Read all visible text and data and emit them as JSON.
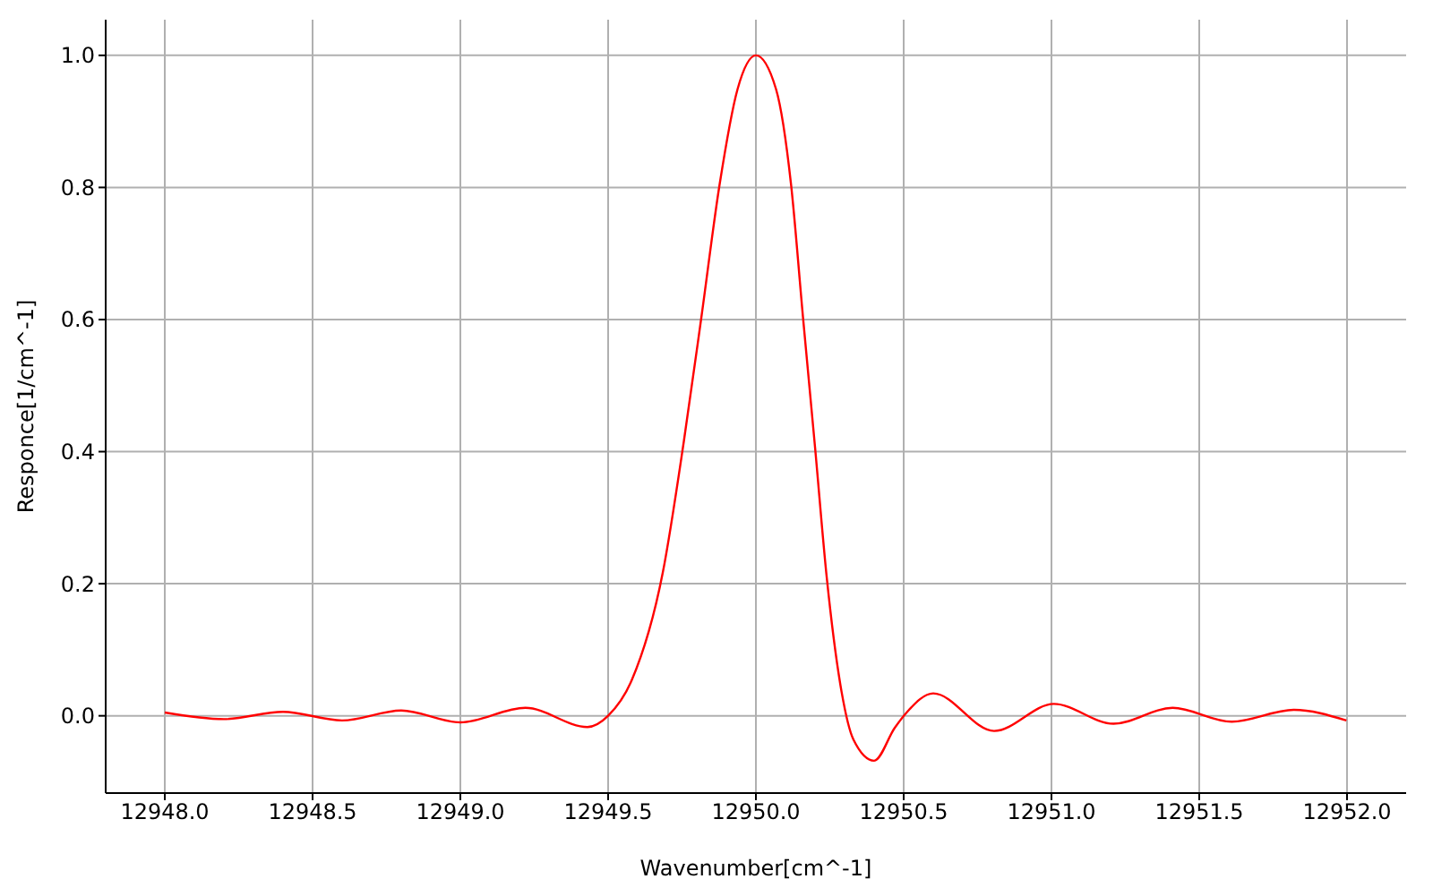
{
  "chart_data": {
    "type": "line",
    "xlabel": "Wavenumber[cm^-1]",
    "ylabel": "Responce[1/cm^-1]",
    "xlim": [
      12947.8,
      12952.2
    ],
    "ylim": [
      -0.117,
      1.054
    ],
    "xticks": [
      {
        "value": 12948,
        "label": "12948.0"
      },
      {
        "value": 12948.5,
        "label": "12948.5"
      },
      {
        "value": 12949,
        "label": "12949.0"
      },
      {
        "value": 12949.5,
        "label": "12949.5"
      },
      {
        "value": 12950,
        "label": "12950.0"
      },
      {
        "value": 12950.5,
        "label": "12950.5"
      },
      {
        "value": 12951,
        "label": "12951.0"
      },
      {
        "value": 12951.5,
        "label": "12951.5"
      },
      {
        "value": 12952,
        "label": "12952.0"
      }
    ],
    "yticks": [
      {
        "value": 0,
        "label": "0.0"
      },
      {
        "value": 0.2,
        "label": "0.2"
      },
      {
        "value": 0.4,
        "label": "0.4"
      },
      {
        "value": 0.6,
        "label": "0.6"
      },
      {
        "value": 0.8,
        "label": "0.8"
      },
      {
        "value": 1,
        "label": "1.0"
      }
    ],
    "grid": true,
    "marker": "none",
    "line_style": "solid",
    "x": [
      12948.0,
      12948.2,
      12948.4,
      12948.6,
      12948.8,
      12949.0,
      12949.22,
      12949.43,
      12949.5,
      12949.58,
      12949.685,
      12949.756,
      12949.816,
      12949.877,
      12949.938,
      12950.0,
      12950.068,
      12950.119,
      12950.159,
      12950.2,
      12950.24,
      12950.29,
      12950.33,
      12950.4,
      12950.47,
      12950.51,
      12950.6,
      12950.806,
      12951.008,
      12951.21,
      12951.41,
      12951.61,
      12951.82,
      12951.998
    ],
    "series": [
      {
        "color": "#ff0000",
        "values": [
          0.005,
          -0.005,
          0.006,
          -0.007,
          0.008,
          -0.01,
          0.012,
          -0.017,
          0.0,
          0.054,
          0.217,
          0.415,
          0.605,
          0.804,
          0.949,
          1.0,
          0.949,
          0.804,
          0.605,
          0.407,
          0.208,
          0.036,
          -0.036,
          -0.068,
          -0.018,
          0.005,
          0.034,
          -0.023,
          0.018,
          -0.012,
          0.012,
          -0.009,
          0.009,
          -0.007
        ]
      }
    ]
  }
}
